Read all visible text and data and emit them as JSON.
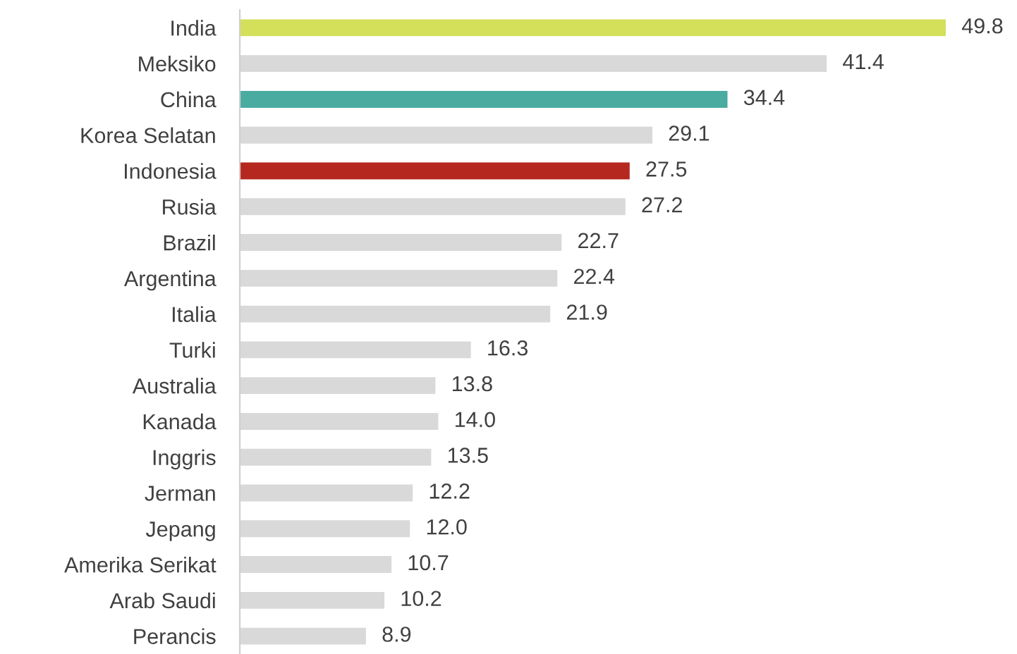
{
  "chart_data": {
    "type": "bar",
    "orientation": "horizontal",
    "value_labels": [
      "49.8",
      "41.4",
      "34.4",
      "29.1",
      "27.5",
      "27.2",
      "22.7",
      "22.4",
      "21.9",
      "16.3",
      "13.8",
      "14.0",
      "13.5",
      "12.2",
      "12.0",
      "10.7",
      "10.2",
      "8.9"
    ],
    "grid": false,
    "legend": false,
    "tick_labels": "y",
    "categories": [
      "India",
      "Meksiko",
      "China",
      "Korea Selatan",
      "Indonesia",
      "Rusia",
      "Brazil",
      "Argentina",
      "Italia",
      "Turki",
      "Australia",
      "Kanada",
      "Inggris",
      "Jerman",
      "Jepang",
      "Amerika Serikat",
      "Arab Saudi",
      "Perancis"
    ],
    "values": [
      49.8,
      41.4,
      34.4,
      29.1,
      27.5,
      27.2,
      22.7,
      22.4,
      21.9,
      16.3,
      13.8,
      14.0,
      13.5,
      12.2,
      12.0,
      10.7,
      10.2,
      8.9
    ],
    "colors": [
      "#d4df5a",
      "#d9d9d9",
      "#4aaba0",
      "#d9d9d9",
      "#b5281f",
      "#d9d9d9",
      "#d9d9d9",
      "#d9d9d9",
      "#d9d9d9",
      "#d9d9d9",
      "#d9d9d9",
      "#d9d9d9",
      "#d9d9d9",
      "#d9d9d9",
      "#d9d9d9",
      "#d9d9d9",
      "#d9d9d9",
      "#d9d9d9"
    ]
  }
}
